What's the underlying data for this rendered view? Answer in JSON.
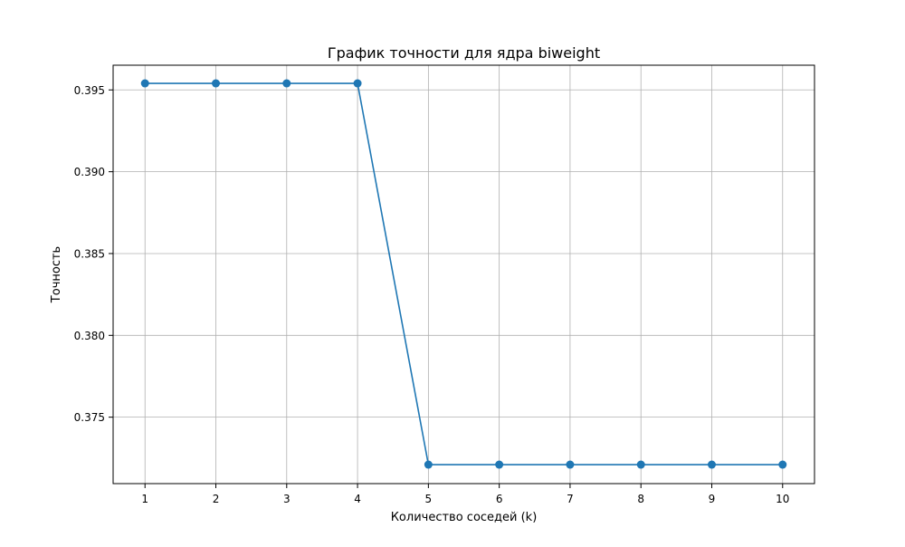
{
  "chart_data": {
    "type": "line",
    "title": "График точности для ядра biweight",
    "xlabel": "Количество соседей (k)",
    "ylabel": "Точность",
    "x": [
      1,
      2,
      3,
      4,
      5,
      6,
      7,
      8,
      9,
      10
    ],
    "series": [
      {
        "values": [
          0.3954,
          0.3954,
          0.3954,
          0.3954,
          0.3721,
          0.3721,
          0.3721,
          0.3721,
          0.3721,
          0.3721
        ],
        "color": "#1f77b4",
        "marker": "circle"
      }
    ],
    "xticks": [
      1,
      2,
      3,
      4,
      5,
      6,
      7,
      8,
      9,
      10
    ],
    "yticks": [
      0.375,
      0.38,
      0.385,
      0.39,
      0.395
    ],
    "ytick_labels": [
      "0.375",
      "0.380",
      "0.385",
      "0.390",
      "0.395"
    ],
    "xlim": [
      0.55,
      10.45
    ],
    "ylim": [
      0.37094,
      0.39651
    ],
    "grid": true
  }
}
